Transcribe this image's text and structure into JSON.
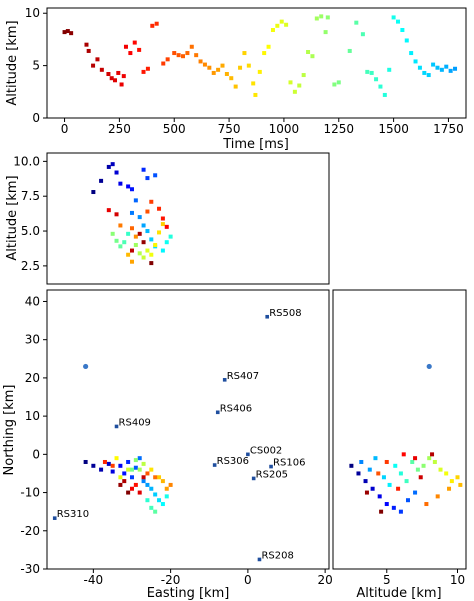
{
  "chart_data": [
    {
      "id": "time_altitude",
      "type": "scatter",
      "xlabel": "Time [ms]",
      "ylabel": "Altitude [km]",
      "xlim": [
        -80,
        1830
      ],
      "ylim": [
        0,
        10.5
      ],
      "xticks": [
        0,
        250,
        500,
        750,
        1000,
        1250,
        1500,
        1750
      ],
      "yticks": [
        0,
        5,
        10
      ],
      "colormap": "jet by time",
      "points": [
        [
          0,
          8.2
        ],
        [
          15,
          8.3
        ],
        [
          30,
          8.1
        ],
        [
          100,
          7.0
        ],
        [
          110,
          6.4
        ],
        [
          130,
          5.0
        ],
        [
          150,
          5.6
        ],
        [
          170,
          4.6
        ],
        [
          200,
          4.2
        ],
        [
          215,
          3.8
        ],
        [
          230,
          3.6
        ],
        [
          245,
          4.3
        ],
        [
          260,
          3.2
        ],
        [
          270,
          4.0
        ],
        [
          280,
          6.8
        ],
        [
          300,
          6.2
        ],
        [
          320,
          7.2
        ],
        [
          340,
          6.5
        ],
        [
          360,
          4.4
        ],
        [
          380,
          4.7
        ],
        [
          400,
          8.8
        ],
        [
          420,
          9.0
        ],
        [
          450,
          5.2
        ],
        [
          470,
          5.6
        ],
        [
          500,
          6.2
        ],
        [
          520,
          6.0
        ],
        [
          540,
          5.9
        ],
        [
          560,
          6.2
        ],
        [
          580,
          6.8
        ],
        [
          600,
          6.0
        ],
        [
          620,
          5.4
        ],
        [
          640,
          5.1
        ],
        [
          660,
          4.8
        ],
        [
          680,
          4.3
        ],
        [
          700,
          4.6
        ],
        [
          720,
          5.0
        ],
        [
          740,
          4.2
        ],
        [
          760,
          3.8
        ],
        [
          780,
          3.0
        ],
        [
          800,
          4.8
        ],
        [
          820,
          6.2
        ],
        [
          840,
          5.0
        ],
        [
          860,
          3.3
        ],
        [
          870,
          2.2
        ],
        [
          890,
          4.4
        ],
        [
          910,
          6.2
        ],
        [
          930,
          6.8
        ],
        [
          950,
          8.4
        ],
        [
          970,
          8.8
        ],
        [
          990,
          9.2
        ],
        [
          1010,
          8.9
        ],
        [
          1030,
          3.4
        ],
        [
          1050,
          2.5
        ],
        [
          1070,
          3.1
        ],
        [
          1090,
          4.1
        ],
        [
          1110,
          6.3
        ],
        [
          1130,
          5.9
        ],
        [
          1150,
          9.5
        ],
        [
          1170,
          9.7
        ],
        [
          1190,
          8.2
        ],
        [
          1200,
          9.6
        ],
        [
          1230,
          3.2
        ],
        [
          1250,
          3.4
        ],
        [
          1300,
          6.4
        ],
        [
          1330,
          9.1
        ],
        [
          1360,
          8.0
        ],
        [
          1380,
          4.4
        ],
        [
          1400,
          4.3
        ],
        [
          1420,
          3.7
        ],
        [
          1440,
          3.0
        ],
        [
          1460,
          2.2
        ],
        [
          1480,
          4.6
        ],
        [
          1500,
          9.6
        ],
        [
          1520,
          9.2
        ],
        [
          1540,
          8.4
        ],
        [
          1560,
          7.4
        ],
        [
          1580,
          6.2
        ],
        [
          1600,
          5.4
        ],
        [
          1620,
          4.8
        ],
        [
          1640,
          4.3
        ],
        [
          1660,
          4.1
        ],
        [
          1680,
          5.1
        ],
        [
          1700,
          4.8
        ],
        [
          1720,
          4.6
        ],
        [
          1740,
          4.9
        ],
        [
          1760,
          4.5
        ],
        [
          1780,
          4.7
        ]
      ]
    },
    {
      "id": "easting_altitude",
      "type": "scatter",
      "xlabel": "",
      "ylabel": "Altitude [km]",
      "xlim": [
        -52,
        21
      ],
      "ylim": [
        1.2,
        10.6
      ],
      "yticks": [
        2.5,
        5.0,
        7.5,
        10.0
      ],
      "colormap": "jet by time",
      "points": [
        [
          -40,
          7.8
        ],
        [
          -38,
          8.6
        ],
        [
          -36,
          9.6
        ],
        [
          -35,
          9.8
        ],
        [
          -34,
          9.2
        ],
        [
          -33,
          8.4
        ],
        [
          -31,
          8.2
        ],
        [
          -30,
          8.0
        ],
        [
          -27,
          9.4
        ],
        [
          -26,
          8.8
        ],
        [
          -24,
          9.0
        ],
        [
          -29,
          7.2
        ],
        [
          -30,
          6.3
        ],
        [
          -28,
          6.0
        ],
        [
          -27,
          5.4
        ],
        [
          -26,
          5.0
        ],
        [
          -25,
          4.4
        ],
        [
          -24,
          3.9
        ],
        [
          -22,
          3.6
        ],
        [
          -21,
          4.2
        ],
        [
          -20,
          4.6
        ],
        [
          -31,
          4.8
        ],
        [
          -32,
          4.2
        ],
        [
          -33,
          3.9
        ],
        [
          -34,
          4.3
        ],
        [
          -35,
          4.8
        ],
        [
          -29,
          4.0
        ],
        [
          -28,
          3.4
        ],
        [
          -27,
          3.1
        ],
        [
          -26,
          3.6
        ],
        [
          -25,
          3.3
        ],
        [
          -24,
          4.0
        ],
        [
          -23,
          4.9
        ],
        [
          -22,
          5.5
        ],
        [
          -31,
          3.3
        ],
        [
          -30,
          2.8
        ],
        [
          -29,
          4.6
        ],
        [
          -33,
          5.4
        ],
        [
          -30,
          5.2
        ],
        [
          -26,
          6.4
        ],
        [
          -25,
          7.1
        ],
        [
          -23,
          6.6
        ],
        [
          -22,
          5.9
        ],
        [
          -21,
          5.3
        ],
        [
          -36,
          6.5
        ],
        [
          -34,
          6.2
        ],
        [
          -30,
          3.6
        ],
        [
          -28,
          4.8
        ],
        [
          -27,
          4.2
        ],
        [
          -25,
          2.7
        ]
      ]
    },
    {
      "id": "easting_northing",
      "type": "scatter",
      "xlabel": "Easting [km]",
      "ylabel": "Northing [km]",
      "xlim": [
        -52,
        21
      ],
      "ylim": [
        -30,
        43
      ],
      "xticks": [
        -40,
        -20,
        0,
        20
      ],
      "yticks": [
        -30,
        -20,
        -10,
        0,
        10,
        20,
        30,
        40
      ],
      "stations": [
        {
          "name": "RS508",
          "x": 5.0,
          "y": 36.0
        },
        {
          "name": "RS407",
          "x": -6.0,
          "y": 19.5
        },
        {
          "name": "RS406",
          "x": -7.8,
          "y": 11.0
        },
        {
          "name": "RS409",
          "x": -34.0,
          "y": 7.3
        },
        {
          "name": "CS002",
          "x": 0.0,
          "y": 0.0
        },
        {
          "name": "RS306",
          "x": -8.6,
          "y": -2.8
        },
        {
          "name": "RS106",
          "x": 6.0,
          "y": -3.2
        },
        {
          "name": "RS205",
          "x": 1.5,
          "y": -6.3
        },
        {
          "name": "RS310",
          "x": -50.0,
          "y": -16.7
        },
        {
          "name": "RS208",
          "x": 3.0,
          "y": -27.5
        }
      ],
      "outlier": {
        "x": -42,
        "y": 23
      },
      "points": [
        [
          -42,
          -2
        ],
        [
          -40,
          -3
        ],
        [
          -38,
          -4
        ],
        [
          -36,
          -2.5
        ],
        [
          -35,
          -4.5
        ],
        [
          -33,
          -3
        ],
        [
          -32,
          -5
        ],
        [
          -31,
          -2
        ],
        [
          -30,
          -6
        ],
        [
          -29,
          -3.5
        ],
        [
          -28,
          -1
        ],
        [
          -27,
          -7
        ],
        [
          -26,
          -8
        ],
        [
          -25,
          -9
        ],
        [
          -24,
          -10.5
        ],
        [
          -23,
          -12
        ],
        [
          -22,
          -13
        ],
        [
          -21,
          -11
        ],
        [
          -26,
          -12
        ],
        [
          -25,
          -14
        ],
        [
          -24,
          -15
        ],
        [
          -30,
          -4
        ],
        [
          -29,
          -1.5
        ],
        [
          -28,
          -4
        ],
        [
          -27,
          -2.5
        ],
        [
          -31,
          -4
        ],
        [
          -33,
          -6
        ],
        [
          -34,
          -1
        ],
        [
          -25,
          -4
        ],
        [
          -23,
          -6
        ],
        [
          -22,
          -7
        ],
        [
          -21,
          -9
        ],
        [
          -20,
          -8
        ],
        [
          -24,
          -6
        ],
        [
          -26,
          -5
        ],
        [
          -35,
          -3
        ],
        [
          -37,
          -2
        ],
        [
          -29,
          -8
        ],
        [
          -30,
          -9
        ],
        [
          -28,
          -10
        ],
        [
          -27,
          -6
        ],
        [
          -32,
          -7
        ],
        [
          -33,
          -8
        ],
        [
          -31,
          -10
        ]
      ]
    },
    {
      "id": "altitude_northing",
      "type": "scatter",
      "xlabel": "Altitude [km]",
      "ylabel": "",
      "xlim": [
        1.2,
        10.6
      ],
      "ylim": [
        -30,
        43
      ],
      "xticks": [
        5,
        10
      ],
      "outlier": {
        "x": 8.0,
        "y": 23
      },
      "points": [
        [
          2.5,
          -3
        ],
        [
          3.0,
          -5
        ],
        [
          3.5,
          -7
        ],
        [
          4.0,
          -9
        ],
        [
          4.5,
          -11
        ],
        [
          5.0,
          -13
        ],
        [
          5.5,
          -14
        ],
        [
          6.0,
          -15
        ],
        [
          6.5,
          -12
        ],
        [
          7.0,
          -10
        ],
        [
          3.2,
          -2
        ],
        [
          3.8,
          -4
        ],
        [
          4.2,
          -1
        ],
        [
          4.8,
          -6
        ],
        [
          5.2,
          -8
        ],
        [
          5.6,
          -3
        ],
        [
          6.0,
          -5
        ],
        [
          6.4,
          -7
        ],
        [
          6.8,
          -2
        ],
        [
          7.2,
          -4
        ],
        [
          7.6,
          -3
        ],
        [
          8.0,
          -1
        ],
        [
          8.4,
          -2
        ],
        [
          8.8,
          -4
        ],
        [
          9.2,
          -5
        ],
        [
          9.6,
          -7
        ],
        [
          10.0,
          -6
        ],
        [
          10.2,
          -8
        ],
        [
          9.4,
          -9
        ],
        [
          8.6,
          -11
        ],
        [
          7.8,
          -13
        ],
        [
          4.4,
          -5
        ],
        [
          5.0,
          -2
        ],
        [
          5.8,
          -9
        ],
        [
          6.2,
          0
        ],
        [
          7.0,
          -1
        ],
        [
          7.4,
          -6
        ],
        [
          8.2,
          0
        ],
        [
          3.6,
          -10
        ],
        [
          4.6,
          -15
        ]
      ]
    }
  ]
}
